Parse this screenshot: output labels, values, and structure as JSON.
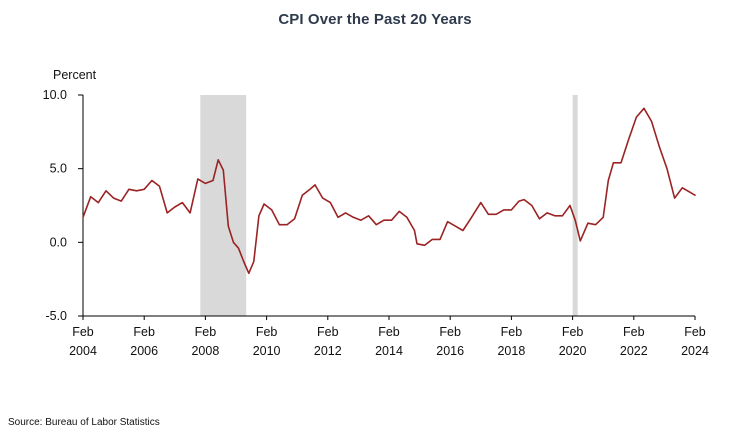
{
  "chart_data": {
    "type": "line",
    "title": "CPI Over the Past 20 Years",
    "ylabel": "Percent",
    "xlabel": "",
    "source": "Source: Bureau of Labor Statistics",
    "ylim": [
      -5.0,
      10.0
    ],
    "y_ticks": [
      {
        "value": 10.0,
        "label": "10.0"
      },
      {
        "value": 5.0,
        "label": "5.0"
      },
      {
        "value": 0.0,
        "label": "0.0"
      },
      {
        "value": -5.0,
        "label": "-5.0"
      }
    ],
    "xlim": [
      "2004-02",
      "2024-02"
    ],
    "x_ticks": [
      {
        "date": "2004-02",
        "month": "Feb",
        "year": "2004"
      },
      {
        "date": "2006-02",
        "month": "Feb",
        "year": "2006"
      },
      {
        "date": "2008-02",
        "month": "Feb",
        "year": "2008"
      },
      {
        "date": "2010-02",
        "month": "Feb",
        "year": "2010"
      },
      {
        "date": "2012-02",
        "month": "Feb",
        "year": "2012"
      },
      {
        "date": "2014-02",
        "month": "Feb",
        "year": "2014"
      },
      {
        "date": "2016-02",
        "month": "Feb",
        "year": "2016"
      },
      {
        "date": "2018-02",
        "month": "Feb",
        "year": "2018"
      },
      {
        "date": "2020-02",
        "month": "Feb",
        "year": "2020"
      },
      {
        "date": "2022-02",
        "month": "Feb",
        "year": "2022"
      },
      {
        "date": "2024-02",
        "month": "Feb",
        "year": "2024"
      }
    ],
    "grid": false,
    "recessions": [
      {
        "start": "2007-12",
        "end": "2009-06"
      },
      {
        "start": "2020-02",
        "end": "2020-04"
      }
    ],
    "colors": {
      "line": "#9b2323",
      "recession": "#d9d9d9",
      "axis": "#000000"
    },
    "series": [
      {
        "x": [
          "2004-02",
          "2004-05",
          "2004-08",
          "2004-11",
          "2005-02",
          "2005-05",
          "2005-08",
          "2005-11",
          "2006-02",
          "2006-05",
          "2006-08",
          "2006-11",
          "2007-02",
          "2007-05",
          "2007-08",
          "2007-11",
          "2008-02",
          "2008-05",
          "2008-07",
          "2008-09",
          "2008-11",
          "2009-01",
          "2009-03",
          "2009-05",
          "2009-07",
          "2009-09",
          "2009-11",
          "2010-01",
          "2010-04",
          "2010-07",
          "2010-10",
          "2011-01",
          "2011-04",
          "2011-07",
          "2011-09",
          "2011-12",
          "2012-03",
          "2012-06",
          "2012-09",
          "2012-12",
          "2013-03",
          "2013-06",
          "2013-09",
          "2013-12",
          "2014-03",
          "2014-06",
          "2014-09",
          "2014-12",
          "2015-01",
          "2015-04",
          "2015-07",
          "2015-10",
          "2016-01",
          "2016-04",
          "2016-07",
          "2016-10",
          "2017-02",
          "2017-05",
          "2017-08",
          "2017-11",
          "2018-02",
          "2018-05",
          "2018-07",
          "2018-10",
          "2019-01",
          "2019-04",
          "2019-07",
          "2019-10",
          "2020-01",
          "2020-03",
          "2020-05",
          "2020-08",
          "2020-11",
          "2021-02",
          "2021-04",
          "2021-06",
          "2021-09",
          "2021-12",
          "2022-03",
          "2022-06",
          "2022-09",
          "2022-12",
          "2023-03",
          "2023-06",
          "2023-09",
          "2023-12",
          "2024-02"
        ],
        "y": [
          1.7,
          3.1,
          2.7,
          3.5,
          3.0,
          2.8,
          3.6,
          3.5,
          3.6,
          4.2,
          3.8,
          2.0,
          2.4,
          2.7,
          2.0,
          4.3,
          4.0,
          4.2,
          5.6,
          4.9,
          1.1,
          0.0,
          -0.4,
          -1.3,
          -2.1,
          -1.3,
          1.8,
          2.6,
          2.2,
          1.2,
          1.2,
          1.6,
          3.2,
          3.6,
          3.9,
          3.0,
          2.7,
          1.7,
          2.0,
          1.7,
          1.5,
          1.8,
          1.2,
          1.5,
          1.5,
          2.1,
          1.7,
          0.8,
          -0.1,
          -0.2,
          0.2,
          0.2,
          1.4,
          1.1,
          0.8,
          1.6,
          2.7,
          1.9,
          1.9,
          2.2,
          2.2,
          2.8,
          2.9,
          2.5,
          1.6,
          2.0,
          1.8,
          1.8,
          2.5,
          1.5,
          0.1,
          1.3,
          1.2,
          1.7,
          4.2,
          5.4,
          5.4,
          7.0,
          8.5,
          9.1,
          8.2,
          6.5,
          5.0,
          3.0,
          3.7,
          3.4,
          3.2
        ]
      }
    ]
  }
}
